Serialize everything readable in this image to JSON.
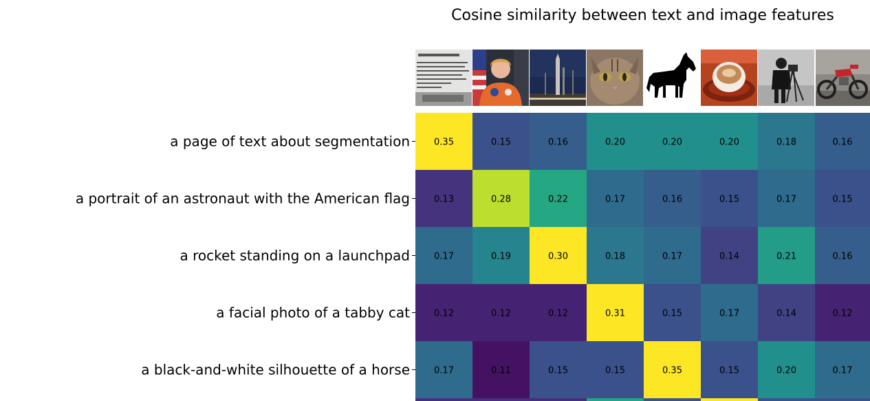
{
  "chart_data": {
    "type": "heatmap",
    "title": "Cosine similarity between text and image features",
    "rows": [
      "a page of text about segmentation",
      "a portrait of an astronaut with the American flag",
      "a rocket standing on a launchpad",
      "a facial photo of a tabby cat",
      "a black-and-white silhouette of a horse"
    ],
    "columns": [
      "page",
      "astronaut",
      "rocket",
      "cat",
      "horse",
      "coffee",
      "camera",
      "motorcycle"
    ],
    "values": [
      [
        0.35,
        0.15,
        0.16,
        0.2,
        0.2,
        0.2,
        0.18,
        0.16
      ],
      [
        0.13,
        0.28,
        0.22,
        0.17,
        0.16,
        0.15,
        0.17,
        0.15
      ],
      [
        0.17,
        0.19,
        0.3,
        0.18,
        0.17,
        0.14,
        0.21,
        0.16
      ],
      [
        0.12,
        0.12,
        0.12,
        0.31,
        0.15,
        0.17,
        0.14,
        0.12
      ],
      [
        0.17,
        0.11,
        0.15,
        0.15,
        0.35,
        0.15,
        0.2,
        0.17
      ]
    ],
    "value_labels": [
      [
        "0.35",
        "0.15",
        "0.16",
        "0.20",
        "0.20",
        "0.20",
        "0.18",
        "0.16"
      ],
      [
        "0.13",
        "0.28",
        "0.22",
        "0.17",
        "0.16",
        "0.15",
        "0.17",
        "0.15"
      ],
      [
        "0.17",
        "0.19",
        "0.30",
        "0.18",
        "0.17",
        "0.14",
        "0.21",
        "0.16"
      ],
      [
        "0.12",
        "0.12",
        "0.12",
        "0.31",
        "0.15",
        "0.17",
        "0.14",
        "0.12"
      ],
      [
        "0.17",
        "0.11",
        "0.15",
        "0.15",
        "0.35",
        "0.15",
        "0.20",
        "0.17"
      ]
    ],
    "colormap": "viridis",
    "color_range": [
      0.1,
      0.3
    ],
    "partial_next_row_colors": [
      "#46307e",
      "#46307e",
      "#46307e",
      "#22a785",
      "#3b528b",
      "#fde725",
      "#3b528b",
      "#3b528b"
    ],
    "column_images": [
      "text-page-image",
      "astronaut-image",
      "rocket-image",
      "cat-image",
      "horse-image",
      "coffee-image",
      "cameraman-image",
      "motorcycle-image"
    ]
  }
}
